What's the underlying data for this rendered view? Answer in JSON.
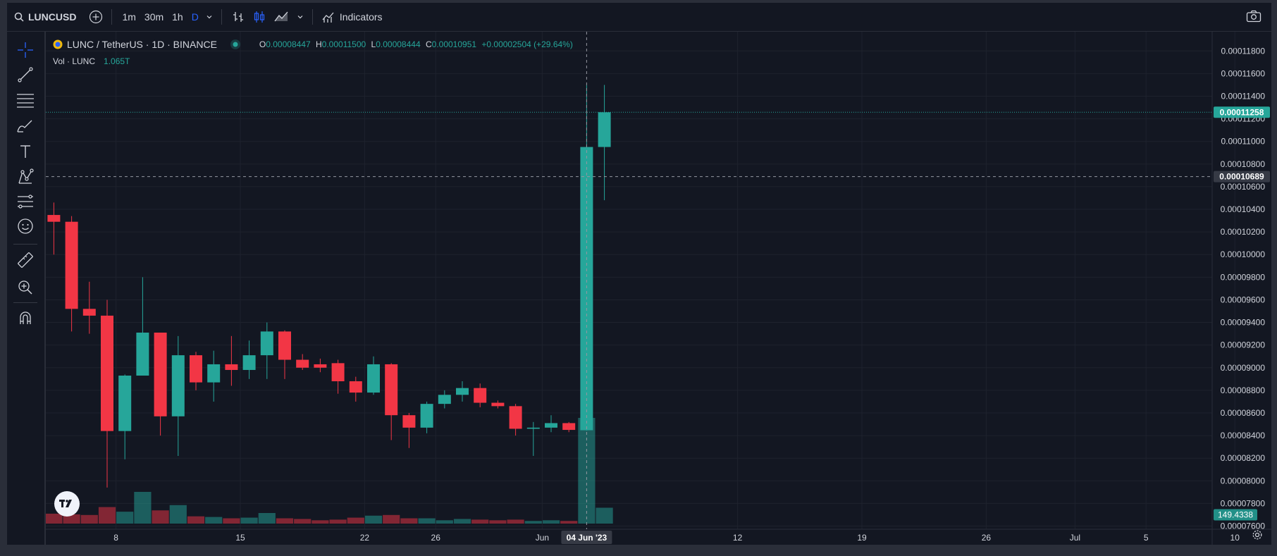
{
  "toolbar": {
    "symbol": "LUNCUSD",
    "intervals": [
      "1m",
      "30m",
      "1h",
      "D"
    ],
    "active_interval": "D",
    "indicators_label": "Indicators"
  },
  "legend": {
    "title": "LUNC / TetherUS · 1D · BINANCE",
    "o_label": "O",
    "o_value": "0.00008447",
    "h_label": "H",
    "h_value": "0.00011500",
    "l_label": "L",
    "l_value": "0.00008444",
    "c_label": "C",
    "c_value": "0.00010951",
    "change": "+0.00002504 (+29.64%)"
  },
  "volume_legend": {
    "label": "Vol · LUNC",
    "value": "1.065T"
  },
  "colors": {
    "up": "#26a69a",
    "down": "#f23645",
    "background": "#131722",
    "grid": "#1e222d",
    "axis_text": "#d1d4dc",
    "crosshair": "#9598a1"
  },
  "chart_data": {
    "type": "candlestick",
    "y_ticks": [
      "0.00011800",
      "0.00011600",
      "0.00011400",
      "0.00011200",
      "0.00011000",
      "0.00010800",
      "0.00010600",
      "0.00010400",
      "0.00010200",
      "0.00010000",
      "0.00009800",
      "0.00009600",
      "0.00009400",
      "0.00009200",
      "0.00009000",
      "0.00008800",
      "0.00008600",
      "0.00008400",
      "0.00008200",
      "0.00008000",
      "0.00007800",
      "0.00007600"
    ],
    "ylim": [
      7.572e-05,
      0.0001197
    ],
    "x_ticks": [
      {
        "label": "8",
        "day": 8
      },
      {
        "label": "15",
        "day": 15
      },
      {
        "label": "22",
        "day": 22
      },
      {
        "label": "26",
        "day": 26
      },
      {
        "label": "Jun",
        "day": 32
      },
      {
        "label": "12",
        "day": 43
      },
      {
        "label": "19",
        "day": 50
      },
      {
        "label": "26",
        "day": 57
      },
      {
        "label": "Jul",
        "day": 62
      },
      {
        "label": "5",
        "day": 66
      },
      {
        "label": "10",
        "day": 71
      }
    ],
    "x_label_date": "04 Jun '23",
    "price_marker_last": "0.00011258",
    "price_marker_cross": "0.00010689",
    "price_value_cross": 0.00010689,
    "volume_marker": "149.4338",
    "candles": [
      {
        "day": 4.5,
        "o": 0.0001035,
        "h": 0.0001046,
        "l": 0.0001,
        "c": 0.0001029,
        "v": 15
      },
      {
        "day": 5.5,
        "o": 0.0001029,
        "h": 0.0001034,
        "l": 9.32e-05,
        "c": 9.52e-05,
        "v": 14
      },
      {
        "day": 6.5,
        "o": 9.52e-05,
        "h": 9.76e-05,
        "l": 9.3e-05,
        "c": 9.46e-05,
        "v": 13
      },
      {
        "day": 7.5,
        "o": 9.46e-05,
        "h": 9.6e-05,
        "l": 7.94e-05,
        "c": 8.44e-05,
        "v": 25
      },
      {
        "day": 8.5,
        "o": 8.44e-05,
        "h": 8.94e-05,
        "l": 8.19e-05,
        "c": 8.93e-05,
        "v": 18
      },
      {
        "day": 9.5,
        "o": 8.93e-05,
        "h": 9.8e-05,
        "l": 8.93e-05,
        "c": 9.31e-05,
        "v": 48
      },
      {
        "day": 10.5,
        "o": 9.31e-05,
        "h": 9.31e-05,
        "l": 8.4e-05,
        "c": 8.57e-05,
        "v": 20
      },
      {
        "day": 11.5,
        "o": 8.57e-05,
        "h": 9.28e-05,
        "l": 8.22e-05,
        "c": 9.11e-05,
        "v": 28
      },
      {
        "day": 12.5,
        "o": 9.11e-05,
        "h": 9.14e-05,
        "l": 8.8e-05,
        "c": 8.87e-05,
        "v": 11
      },
      {
        "day": 13.5,
        "o": 8.87e-05,
        "h": 9.15e-05,
        "l": 8.7e-05,
        "c": 9.03e-05,
        "v": 10
      },
      {
        "day": 14.5,
        "o": 9.03e-05,
        "h": 9.28e-05,
        "l": 8.84e-05,
        "c": 8.98e-05,
        "v": 8
      },
      {
        "day": 15.5,
        "o": 8.98e-05,
        "h": 9.24e-05,
        "l": 8.9e-05,
        "c": 9.11e-05,
        "v": 9
      },
      {
        "day": 16.5,
        "o": 9.11e-05,
        "h": 9.4e-05,
        "l": 8.9e-05,
        "c": 9.32e-05,
        "v": 16
      },
      {
        "day": 17.5,
        "o": 9.32e-05,
        "h": 9.33e-05,
        "l": 8.9e-05,
        "c": 9.07e-05,
        "v": 8
      },
      {
        "day": 18.5,
        "o": 9.07e-05,
        "h": 9.12e-05,
        "l": 8.98e-05,
        "c": 9e-05,
        "v": 7
      },
      {
        "day": 19.5,
        "o": 9.03e-05,
        "h": 9.08e-05,
        "l": 8.96e-05,
        "c": 9e-05,
        "v": 5
      },
      {
        "day": 20.5,
        "o": 9.04e-05,
        "h": 9.07e-05,
        "l": 8.77e-05,
        "c": 8.88e-05,
        "v": 6
      },
      {
        "day": 21.5,
        "o": 8.88e-05,
        "h": 8.92e-05,
        "l": 8.7e-05,
        "c": 8.78e-05,
        "v": 9
      },
      {
        "day": 22.5,
        "o": 8.78e-05,
        "h": 9.1e-05,
        "l": 8.76e-05,
        "c": 9.03e-05,
        "v": 12
      },
      {
        "day": 23.5,
        "o": 9.03e-05,
        "h": 9.04e-05,
        "l": 8.36e-05,
        "c": 8.58e-05,
        "v": 13
      },
      {
        "day": 24.5,
        "o": 8.58e-05,
        "h": 8.6e-05,
        "l": 8.29e-05,
        "c": 8.47e-05,
        "v": 8
      },
      {
        "day": 25.5,
        "o": 8.47e-05,
        "h": 8.7e-05,
        "l": 8.42e-05,
        "c": 8.68e-05,
        "v": 8
      },
      {
        "day": 26.5,
        "o": 8.68e-05,
        "h": 8.8e-05,
        "l": 8.64e-05,
        "c": 8.76e-05,
        "v": 5
      },
      {
        "day": 27.5,
        "o": 8.76e-05,
        "h": 8.88e-05,
        "l": 8.7e-05,
        "c": 8.82e-05,
        "v": 7
      },
      {
        "day": 28.5,
        "o": 8.82e-05,
        "h": 8.86e-05,
        "l": 8.65e-05,
        "c": 8.69e-05,
        "v": 6
      },
      {
        "day": 29.5,
        "o": 8.69e-05,
        "h": 8.71e-05,
        "l": 8.64e-05,
        "c": 8.66e-05,
        "v": 5
      },
      {
        "day": 30.5,
        "o": 8.66e-05,
        "h": 8.68e-05,
        "l": 8.4e-05,
        "c": 8.46e-05,
        "v": 6
      },
      {
        "day": 31.5,
        "o": 8.46e-05,
        "h": 8.52e-05,
        "l": 8.22e-05,
        "c": 8.47e-05,
        "v": 4
      },
      {
        "day": 32.5,
        "o": 8.47e-05,
        "h": 8.58e-05,
        "l": 8.43e-05,
        "c": 8.51e-05,
        "v": 5
      },
      {
        "day": 33.5,
        "o": 8.51e-05,
        "h": 8.52e-05,
        "l": 8.43e-05,
        "c": 8.45e-05,
        "v": 4
      },
      {
        "day": 34.5,
        "o": 8.447e-05,
        "h": 0.000115,
        "l": 8.444e-05,
        "c": 0.00010951,
        "v": 160
      },
      {
        "day": 35.5,
        "o": 0.00010951,
        "h": 0.000115,
        "l": 0.0001048,
        "c": 0.00011258,
        "v": 24
      }
    ]
  }
}
